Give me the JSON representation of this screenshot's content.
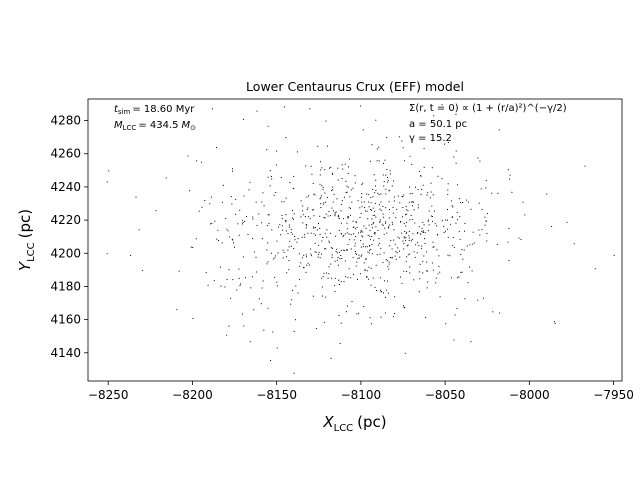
{
  "chart_data": {
    "type": "scatter",
    "title": "Lower Centaurus Crux (EFF) model",
    "xlabel": {
      "main": "X",
      "sub": "LCC",
      "unit": "(pc)"
    },
    "ylabel": {
      "main": "Y",
      "sub": "LCC",
      "unit": "(pc)"
    },
    "xlim": [
      -8262,
      -7945
    ],
    "ylim": [
      4123,
      4293
    ],
    "xticks": [
      -8250,
      -8200,
      -8150,
      -8100,
      -8050,
      -8000,
      -7950
    ],
    "yticks": [
      4140,
      4160,
      4180,
      4200,
      4220,
      4240,
      4260,
      4280
    ],
    "grid": false,
    "annotations_left": {
      "t_sim": {
        "label": "t",
        "sub": "sim",
        "value": "= 18.60 Myr"
      },
      "M_LCC": {
        "label": "M",
        "sub": "LCC",
        "value": "= 434.5",
        "unit": "M",
        "unit_sub": "⊙"
      }
    },
    "annotations_right": {
      "profile": "Σ(r, t = 0) ∝ (1 + (r/a)²)^(−γ/2)",
      "a": "a = 50.1 pc",
      "gamma": "γ = 15.2"
    },
    "series": [
      {
        "marker": "pixel",
        "color": "#000000",
        "points": [
          [
            -8250,
            4250
          ],
          [
            -8237,
            4199
          ],
          [
            -8230,
            4190
          ],
          [
            -8222,
            4226
          ],
          [
            -8203,
            4259
          ],
          [
            -8202,
            4238
          ],
          [
            -8201,
            4204
          ],
          [
            -8200,
            4161
          ],
          [
            -8198,
            4209
          ],
          [
            -8191,
            4181
          ],
          [
            -8186,
            4264
          ],
          [
            -8181,
            4180
          ],
          [
            -8180,
            4151
          ],
          [
            -8170,
            4281
          ],
          [
            -8162,
            4286
          ],
          [
            -8140,
            4128
          ],
          [
            -8121,
            4280
          ],
          [
            -8035,
            4147
          ],
          [
            -8022,
            4165
          ],
          [
            -7990,
            4236
          ],
          [
            -7985,
            4158
          ],
          [
            -7978,
            4219
          ],
          [
            -7950,
            4199
          ],
          [
            -8118,
            4137
          ],
          [
            -8074,
            4140
          ],
          [
            -8076,
            4268
          ],
          [
            -8045,
            4148
          ],
          [
            -8166,
            4147
          ],
          [
            -8081,
            4162
          ],
          [
            -8012,
            4245
          ],
          [
            -8013,
            4207
          ]
        ],
        "core": {
          "center": [
            -8100,
            4215
          ],
          "sigma_x": 36,
          "sigma_y": 22,
          "count": 680
        },
        "halo": {
          "center": [
            -8105,
            4212
          ],
          "sigma_x": 55,
          "sigma_y": 30,
          "count": 220
        }
      }
    ]
  }
}
